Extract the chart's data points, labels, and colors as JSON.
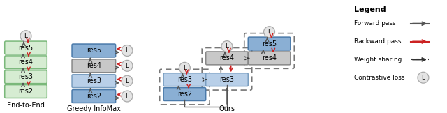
{
  "fig_width": 6.4,
  "fig_height": 1.62,
  "dpi": 100,
  "bg_color": "#ffffff",
  "green_box_color": "#d6ecd2",
  "green_box_edge": "#7ab87a",
  "blue_dark_color": "#8aafd4",
  "blue_dark_edge": "#4a7aaa",
  "blue_light_color": "#b8cfe8",
  "blue_light_edge": "#7a9ec0",
  "gray_box_color": "#c8c8c8",
  "gray_box_edge": "#888888",
  "circle_color": "#e4e4e4",
  "circle_edge": "#aaaaaa",
  "forward_color": "#555555",
  "backward_color": "#cc2222",
  "weight_color": "#333333",
  "dashed_box_color": "#777777",
  "sections": [
    "End-to-End",
    "Greedy InfoMax",
    "Ours"
  ],
  "legend_title": "Legend"
}
